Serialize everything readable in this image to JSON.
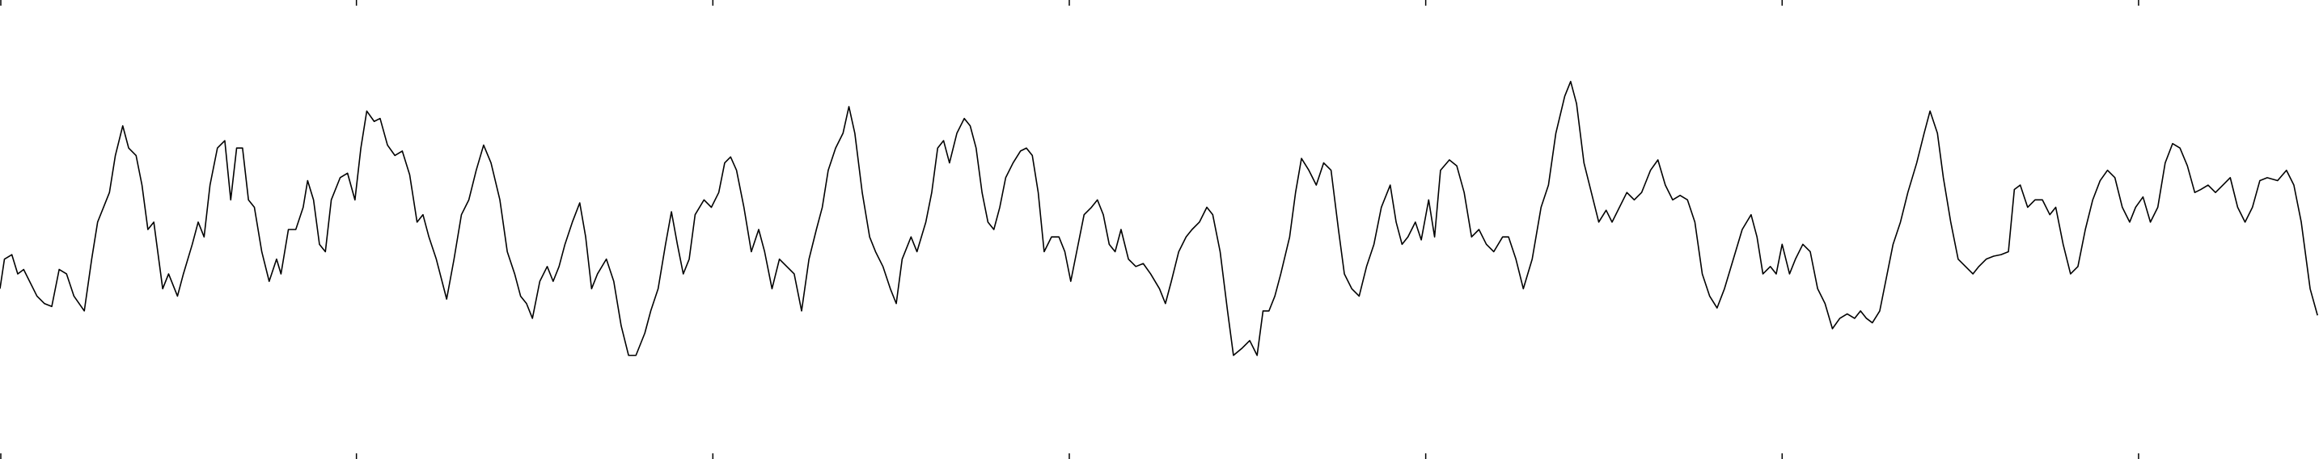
{
  "chart_data": {
    "type": "line",
    "x": [
      0,
      3,
      8,
      12,
      16,
      20,
      25,
      30,
      35,
      40,
      45,
      50,
      57,
      62,
      66,
      70,
      74,
      78,
      83,
      87,
      92,
      96,
      100,
      104,
      110,
      114,
      120,
      124,
      130,
      134,
      138,
      142,
      147,
      152,
      156,
      160,
      164,
      168,
      172,
      177,
      182,
      187,
      190,
      195,
      200,
      205,
      208,
      212,
      216,
      220,
      224,
      230,
      235,
      240,
      244,
      248,
      253,
      257,
      262,
      267,
      272,
      277,
      282,
      286,
      290,
      295,
      302,
      307,
      312,
      317,
      322,
      327,
      332,
      338,
      343,
      348,
      352,
      356,
      360,
      365,
      370,
      374,
      378,
      382,
      387,
      392,
      396,
      400,
      404,
      410,
      415,
      420,
      425,
      430,
      436,
      440,
      445,
      450,
      454,
      458,
      462,
      466,
      470,
      476,
      481,
      486,
      490,
      494,
      498,
      503,
      508,
      513,
      517,
      522,
      527,
      532,
      537,
      542,
      547,
      552,
      556,
      560,
      565,
      570,
      574,
      578,
      583,
      588,
      592,
      597,
      602,
      606,
      610,
      616,
      620,
      626,
      630,
      634,
      638,
      642,
      647,
      652,
      656,
      660,
      664,
      668,
      672,
      676,
      680,
      685,
      690,
      694,
      698,
      702,
      706,
      711,
      716,
      720,
      724,
      728,
      733,
      738,
      742,
      746,
      750,
      754,
      758,
      763,
      768,
      773,
      778,
      784,
      788,
      792,
      797,
      802,
      806,
      811,
      816,
      820,
      825,
      830,
      834,
      840,
      845,
      850,
      854,
      858,
      862,
      866,
      872,
      876,
      880,
      885,
      890,
      895,
      900,
      905,
      909,
      914,
      919,
      924,
      929,
      934,
      940,
      944,
      948,
      952,
      957,
      961,
      966,
      970,
      974,
      980,
      985,
      990,
      995,
      1000,
      1005,
      1010,
      1016,
      1020,
      1025,
      1030,
      1036,
      1042,
      1047,
      1052,
      1058,
      1062,
      1066,
      1071,
      1076,
      1081,
      1086,
      1090,
      1095,
      1100,
      1105,
      1110,
      1116,
      1121,
      1126,
      1131,
      1136,
      1141,
      1146,
      1151,
      1156,
      1161,
      1166,
      1172,
      1178,
      1184,
      1188,
      1192,
      1197,
      1201,
      1205,
      1210,
      1214,
      1219,
      1224,
      1229,
      1234,
      1239,
      1244,
      1249,
      1254,
      1258,
      1262,
      1266,
      1271,
      1275,
      1280,
      1285,
      1290,
      1296,
      1301,
      1305,
      1310,
      1314,
      1319,
      1324,
      1329,
      1334,
      1338,
      1343,
      1348,
      1353,
      1358,
      1362,
      1366,
      1371,
      1376,
      1381,
      1386,
      1390,
      1395,
      1400,
      1405,
      1410,
      1415,
      1420,
      1425,
      1430,
      1435,
      1440,
      1444,
      1449,
      1454,
      1459,
      1464,
      1469,
      1474,
      1479,
      1484,
      1488,
      1493,
      1498,
      1503,
      1508,
      1513,
      1518,
      1523,
      1528,
      1533,
      1540,
      1546,
      1551,
      1556,
      1562,
      1567
    ],
    "series": [
      {
        "color": "#000000",
        "values": [
          195,
          175,
          172,
          185,
          182,
          190,
          200,
          205,
          207,
          182,
          185,
          200,
          210,
          175,
          150,
          140,
          130,
          105,
          85,
          100,
          105,
          125,
          155,
          150,
          195,
          185,
          200,
          185,
          165,
          150,
          160,
          125,
          100,
          95,
          135,
          100,
          100,
          135,
          140,
          170,
          190,
          175,
          185,
          155,
          155,
          140,
          122,
          135,
          165,
          170,
          135,
          120,
          117,
          135,
          100,
          75,
          82,
          80,
          98,
          105,
          102,
          118,
          150,
          145,
          160,
          175,
          202,
          175,
          145,
          135,
          115,
          98,
          110,
          135,
          170,
          185,
          200,
          205,
          215,
          190,
          180,
          190,
          180,
          165,
          150,
          137,
          160,
          195,
          185,
          175,
          190,
          220,
          240,
          240,
          225,
          210,
          195,
          165,
          143,
          165,
          185,
          175,
          145,
          135,
          140,
          130,
          110,
          106,
          115,
          140,
          170,
          155,
          170,
          195,
          175,
          180,
          185,
          210,
          175,
          155,
          140,
          115,
          100,
          90,
          72,
          90,
          130,
          160,
          170,
          180,
          195,
          205,
          175,
          160,
          170,
          150,
          130,
          100,
          95,
          110,
          90,
          80,
          85,
          100,
          130,
          150,
          155,
          140,
          120,
          110,
          102,
          100,
          105,
          130,
          170,
          160,
          160,
          170,
          190,
          170,
          145,
          140,
          135,
          145,
          165,
          170,
          155,
          175,
          180,
          178,
          185,
          195,
          205,
          190,
          170,
          160,
          155,
          150,
          140,
          145,
          170,
          210,
          240,
          235,
          230,
          240,
          210,
          210,
          200,
          185,
          160,
          130,
          107,
          115,
          125,
          110,
          115,
          155,
          185,
          195,
          200,
          180,
          165,
          140,
          125,
          150,
          165,
          160,
          150,
          162,
          135,
          160,
          115,
          108,
          112,
          130,
          160,
          155,
          165,
          170,
          160,
          160,
          175,
          195,
          175,
          140,
          125,
          90,
          65,
          55,
          70,
          110,
          130,
          150,
          142,
          150,
          140,
          130,
          135,
          130,
          115,
          108,
          125,
          135,
          132,
          135,
          150,
          185,
          200,
          208,
          195,
          175,
          155,
          145,
          160,
          185,
          180,
          185,
          165,
          185,
          175,
          165,
          170,
          195,
          205,
          222,
          215,
          212,
          215,
          210,
          215,
          218,
          210,
          190,
          165,
          150,
          130,
          110,
          90,
          75,
          90,
          120,
          150,
          175,
          180,
          185,
          180,
          175,
          173,
          172,
          170,
          128,
          125,
          140,
          135,
          135,
          145,
          140,
          165,
          185,
          180,
          155,
          135,
          122,
          115,
          120,
          140,
          150,
          140,
          133,
          150,
          140,
          110,
          97,
          100,
          112,
          130,
          128,
          125,
          130,
          125,
          120,
          140,
          150,
          140,
          122,
          120,
          122,
          115,
          125,
          150,
          195,
          213
        ]
      }
    ],
    "xlim": [
      0,
      1568
    ],
    "xticks": [
      0,
      241,
      482,
      723,
      964,
      1205,
      1446
    ],
    "ylim": [
      310,
      0
    ]
  }
}
